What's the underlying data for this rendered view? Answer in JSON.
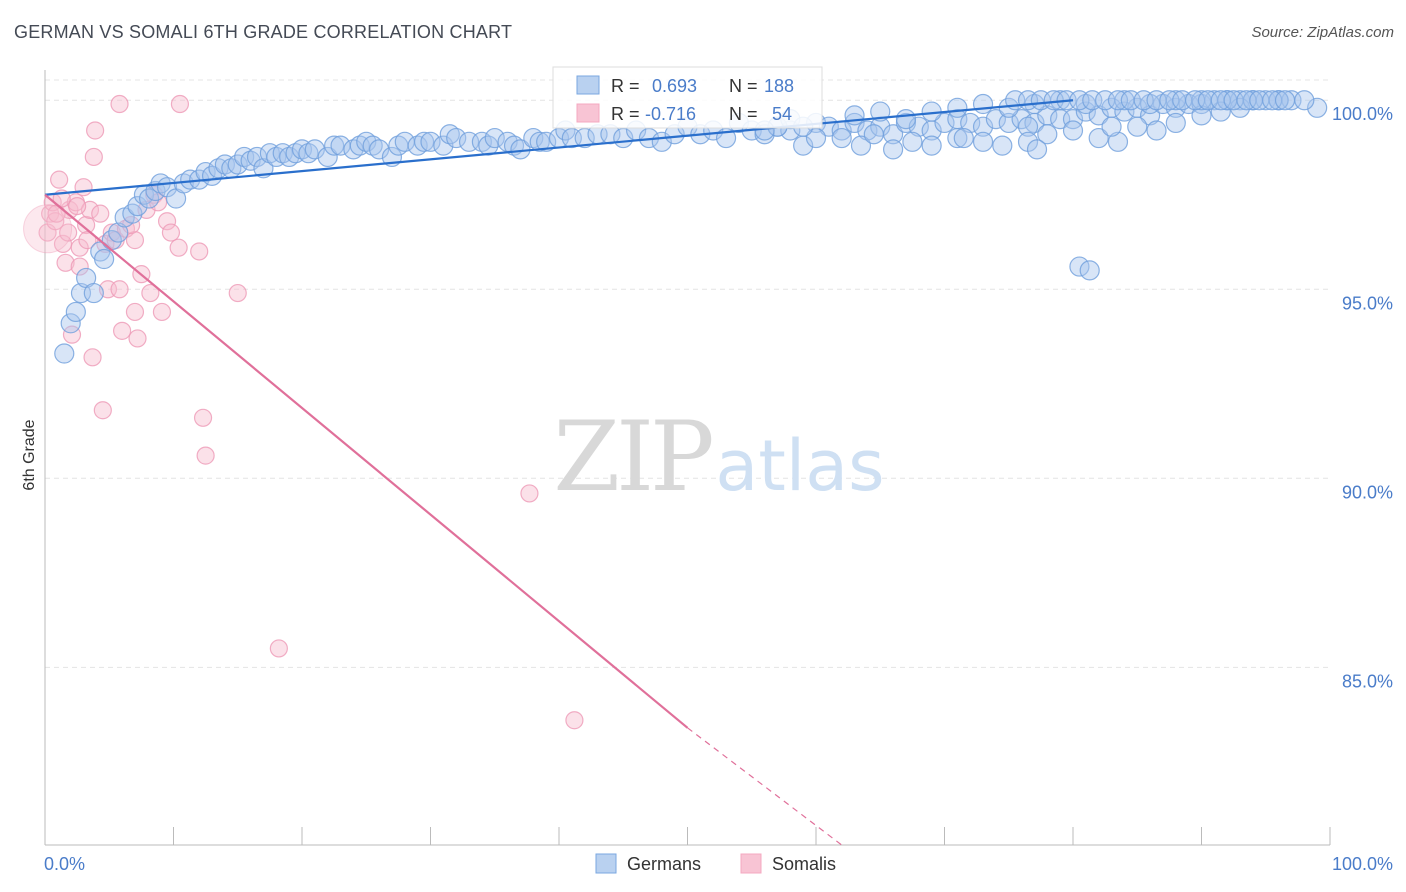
{
  "title": "GERMAN VS SOMALI 6TH GRADE CORRELATION CHART",
  "source": "Source: ZipAtlas.com",
  "watermark": {
    "zip": "ZIP",
    "atlas": "atlas"
  },
  "chart_data": {
    "type": "scatter",
    "title": "GERMAN VS SOMALI 6TH GRADE CORRELATION CHART",
    "xlabel": "",
    "ylabel": "6th Grade",
    "xlim": [
      0,
      100
    ],
    "ylim": [
      80.3,
      100.8
    ],
    "x_tick_labels": [
      "0.0%",
      "100.0%"
    ],
    "y_ticks": [
      85,
      90,
      95,
      100
    ],
    "y_tick_labels": [
      "85.0%",
      "90.0%",
      "95.0%",
      "100.0%"
    ],
    "grid": true,
    "legend_position": "top-center",
    "legend_stats": [
      {
        "r_label": "R =",
        "r_value": "0.693",
        "n_label": "N =",
        "n_value": "188"
      },
      {
        "r_label": "R =",
        "r_value": "-0.716",
        "n_label": "N =",
        "n_value": "54"
      }
    ],
    "series": [
      {
        "name": "Germans",
        "color": "#7aa7e0",
        "trend": {
          "x0": 0,
          "y0": 97.5,
          "x1": 80,
          "y1": 100.0,
          "color": "#2a6fcc"
        },
        "points": [
          [
            1.5,
            93.3
          ],
          [
            2,
            94.1
          ],
          [
            2.4,
            94.4
          ],
          [
            2.8,
            94.9
          ],
          [
            3.2,
            95.3
          ],
          [
            3.8,
            94.9
          ],
          [
            4.3,
            96.0
          ],
          [
            4.6,
            95.8
          ],
          [
            5.2,
            96.3
          ],
          [
            5.7,
            96.5
          ],
          [
            6.2,
            96.9
          ],
          [
            6.8,
            97.0
          ],
          [
            7.2,
            97.2
          ],
          [
            7.7,
            97.5
          ],
          [
            8.1,
            97.4
          ],
          [
            8.6,
            97.6
          ],
          [
            9,
            97.8
          ],
          [
            9.5,
            97.7
          ],
          [
            10.2,
            97.4
          ],
          [
            10.8,
            97.8
          ],
          [
            11.3,
            97.9
          ],
          [
            12,
            97.9
          ],
          [
            12.5,
            98.1
          ],
          [
            13,
            98.0
          ],
          [
            13.5,
            98.2
          ],
          [
            14,
            98.3
          ],
          [
            14.5,
            98.2
          ],
          [
            15,
            98.3
          ],
          [
            15.5,
            98.5
          ],
          [
            16,
            98.4
          ],
          [
            16.5,
            98.5
          ],
          [
            17,
            98.2
          ],
          [
            17.5,
            98.6
          ],
          [
            18,
            98.5
          ],
          [
            18.5,
            98.6
          ],
          [
            19,
            98.5
          ],
          [
            19.5,
            98.6
          ],
          [
            20,
            98.7
          ],
          [
            20.5,
            98.6
          ],
          [
            21,
            98.7
          ],
          [
            22,
            98.5
          ],
          [
            22.5,
            98.8
          ],
          [
            23,
            98.8
          ],
          [
            24,
            98.7
          ],
          [
            24.5,
            98.8
          ],
          [
            25,
            98.9
          ],
          [
            25.5,
            98.8
          ],
          [
            26,
            98.7
          ],
          [
            27,
            98.5
          ],
          [
            27.5,
            98.8
          ],
          [
            28,
            98.9
          ],
          [
            29,
            98.8
          ],
          [
            29.5,
            98.9
          ],
          [
            30,
            98.9
          ],
          [
            31,
            98.8
          ],
          [
            31.5,
            99.1
          ],
          [
            32,
            99.0
          ],
          [
            33,
            98.9
          ],
          [
            34,
            98.9
          ],
          [
            34.5,
            98.8
          ],
          [
            35,
            99.0
          ],
          [
            36,
            98.9
          ],
          [
            36.5,
            98.8
          ],
          [
            37,
            98.7
          ],
          [
            38,
            99.0
          ],
          [
            38.5,
            98.9
          ],
          [
            39,
            98.9
          ],
          [
            40,
            99.0
          ],
          [
            40.5,
            99.2
          ],
          [
            41,
            99.0
          ],
          [
            42,
            99.0
          ],
          [
            43,
            99.1
          ],
          [
            44,
            99.1
          ],
          [
            45,
            99.0
          ],
          [
            46,
            99.2
          ],
          [
            47,
            99.0
          ],
          [
            48,
            98.9
          ],
          [
            49,
            99.1
          ],
          [
            50,
            99.3
          ],
          [
            51,
            99.1
          ],
          [
            52,
            99.2
          ],
          [
            53,
            99.0
          ],
          [
            54,
            99.4
          ],
          [
            55,
            99.2
          ],
          [
            56,
            99.1
          ],
          [
            57,
            99.3
          ],
          [
            58,
            99.2
          ],
          [
            59,
            98.8
          ],
          [
            60,
            99.4
          ],
          [
            61,
            99.3
          ],
          [
            62,
            99.2
          ],
          [
            63,
            99.4
          ],
          [
            64,
            99.2
          ],
          [
            65,
            99.3
          ],
          [
            66,
            99.1
          ],
          [
            67,
            99.4
          ],
          [
            68,
            99.3
          ],
          [
            69,
            99.2
          ],
          [
            70,
            99.4
          ],
          [
            71,
            99.5
          ],
          [
            72,
            99.4
          ],
          [
            73,
            99.3
          ],
          [
            74,
            99.5
          ],
          [
            75,
            99.4
          ],
          [
            76,
            99.5
          ],
          [
            77,
            99.4
          ],
          [
            78,
            99.6
          ],
          [
            79,
            99.5
          ],
          [
            80,
            99.5
          ],
          [
            81,
            99.7
          ],
          [
            82,
            99.6
          ],
          [
            83,
            99.8
          ],
          [
            84,
            99.7
          ],
          [
            85,
            99.8
          ],
          [
            86,
            99.6
          ],
          [
            87,
            99.9
          ],
          [
            88,
            99.8
          ],
          [
            89,
            99.9
          ],
          [
            90,
            99.9
          ],
          [
            91,
            100.0
          ],
          [
            92,
            100.0
          ],
          [
            93,
            100.0
          ],
          [
            94,
            100.0
          ],
          [
            95,
            100.0
          ],
          [
            96,
            100.0
          ],
          [
            97,
            100.0
          ],
          [
            99,
            99.8
          ],
          [
            62,
            99.0
          ],
          [
            63.5,
            98.8
          ],
          [
            64.5,
            99.1
          ],
          [
            66,
            98.7
          ],
          [
            67.5,
            98.9
          ],
          [
            69,
            98.8
          ],
          [
            71,
            99.0
          ],
          [
            73,
            98.9
          ],
          [
            74.5,
            98.8
          ],
          [
            76.5,
            99.3
          ],
          [
            78,
            99.1
          ],
          [
            80,
            99.2
          ],
          [
            82,
            99.0
          ],
          [
            83.5,
            98.9
          ],
          [
            85,
            99.3
          ],
          [
            86.5,
            99.2
          ],
          [
            88,
            99.4
          ],
          [
            90,
            99.6
          ],
          [
            91.5,
            99.7
          ],
          [
            93,
            99.8
          ],
          [
            63,
            99.6
          ],
          [
            65,
            99.7
          ],
          [
            67,
            99.5
          ],
          [
            69,
            99.7
          ],
          [
            71,
            99.8
          ],
          [
            73,
            99.9
          ],
          [
            75,
            99.8
          ],
          [
            77,
            99.9
          ],
          [
            79,
            100.0
          ],
          [
            81,
            99.9
          ],
          [
            84,
            100.0
          ],
          [
            86,
            99.9
          ],
          [
            88,
            100.0
          ],
          [
            90,
            100.0
          ],
          [
            92,
            100.0
          ],
          [
            94,
            100.0
          ],
          [
            96,
            100.0
          ],
          [
            98,
            100.0
          ],
          [
            75.5,
            100.0
          ],
          [
            76.5,
            100.0
          ],
          [
            77.5,
            100.0
          ],
          [
            78.5,
            100.0
          ],
          [
            79.5,
            100.0
          ],
          [
            80.5,
            100.0
          ],
          [
            81.5,
            100.0
          ],
          [
            82.5,
            100.0
          ],
          [
            83.5,
            100.0
          ],
          [
            84.5,
            100.0
          ],
          [
            85.5,
            100.0
          ],
          [
            86.5,
            100.0
          ],
          [
            87.5,
            100.0
          ],
          [
            88.5,
            100.0
          ],
          [
            89.5,
            100.0
          ],
          [
            90.5,
            100.0
          ],
          [
            91.5,
            100.0
          ],
          [
            92.5,
            100.0
          ],
          [
            93.5,
            100.0
          ],
          [
            94.5,
            100.0
          ],
          [
            95.5,
            100.0
          ],
          [
            96.5,
            100.0
          ],
          [
            76.5,
            98.9
          ],
          [
            77.2,
            98.7
          ],
          [
            80.5,
            95.6
          ],
          [
            81.3,
            95.5
          ],
          [
            83,
            99.3
          ],
          [
            71.5,
            99.0
          ],
          [
            60,
            99.0
          ],
          [
            57,
            99.3
          ],
          [
            58,
            99.5
          ],
          [
            59,
            99.3
          ],
          [
            56,
            99.2
          ]
        ]
      },
      {
        "name": "Somalis",
        "color": "#f4a8c0",
        "trend": {
          "x0": 0,
          "y0": 97.5,
          "x1": 50,
          "y1": 83.4,
          "x2": 62,
          "y2": 80.3,
          "color": "#e0709a"
        },
        "points": [
          [
            0.2,
            96.5
          ],
          [
            0.4,
            97.0
          ],
          [
            0.6,
            97.3
          ],
          [
            0.8,
            96.8
          ],
          [
            1.1,
            97.9
          ],
          [
            1.4,
            96.2
          ],
          [
            1.6,
            95.7
          ],
          [
            1.9,
            97.1
          ],
          [
            2.1,
            93.8
          ],
          [
            2.4,
            97.3
          ],
          [
            2.7,
            95.6
          ],
          [
            3.0,
            97.7
          ],
          [
            3.2,
            96.7
          ],
          [
            3.5,
            97.1
          ],
          [
            3.7,
            93.2
          ],
          [
            3.9,
            99.2
          ],
          [
            3.8,
            98.5
          ],
          [
            4.3,
            97.0
          ],
          [
            4.7,
            96.2
          ],
          [
            4.9,
            95.0
          ],
          [
            5.2,
            96.5
          ],
          [
            5.5,
            96.3
          ],
          [
            5.8,
            95.0
          ],
          [
            6.0,
            93.9
          ],
          [
            6.3,
            96.6
          ],
          [
            7.0,
            96.3
          ],
          [
            7.0,
            94.4
          ],
          [
            7.2,
            93.7
          ],
          [
            7.5,
            95.4
          ],
          [
            7.9,
            97.1
          ],
          [
            8.2,
            94.9
          ],
          [
            8.5,
            97.5
          ],
          [
            8.8,
            97.3
          ],
          [
            9.1,
            94.4
          ],
          [
            9.5,
            96.8
          ],
          [
            9.8,
            96.5
          ],
          [
            10.4,
            96.1
          ],
          [
            12.0,
            96.0
          ],
          [
            12.3,
            91.6
          ],
          [
            12.5,
            90.6
          ],
          [
            15.0,
            94.9
          ],
          [
            18.2,
            85.5
          ],
          [
            37.7,
            89.6
          ],
          [
            41.2,
            83.6
          ],
          [
            5.8,
            99.9
          ],
          [
            10.5,
            99.9
          ],
          [
            2.5,
            97.2
          ],
          [
            1.8,
            96.5
          ],
          [
            0.9,
            97.0
          ],
          [
            1.3,
            97.4
          ],
          [
            4.5,
            91.8
          ],
          [
            2.7,
            96.1
          ],
          [
            6.7,
            96.7
          ],
          [
            3.3,
            96.3
          ]
        ]
      }
    ]
  },
  "legend": {
    "items": [
      "Germans",
      "Somalis"
    ]
  }
}
